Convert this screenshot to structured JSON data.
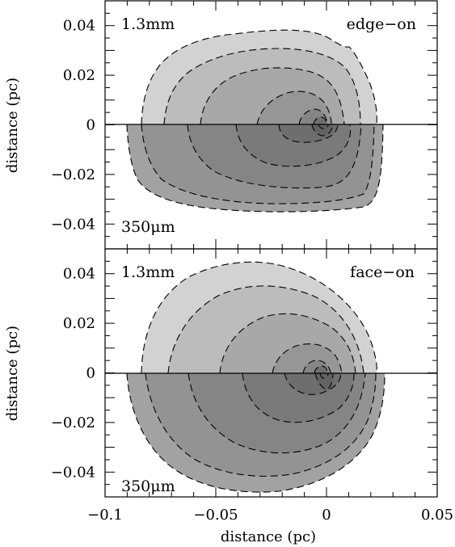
{
  "chart_data": [
    {
      "type": "contour",
      "panel": "top",
      "xlim": [
        -0.1,
        0.05
      ],
      "ylim": [
        -0.05,
        0.05
      ],
      "xlabel": "distance (pc)",
      "ylabel": "distance (pc)",
      "yticks": [
        "0.04",
        "0.02",
        "0",
        "−0.02",
        "−0.04"
      ],
      "xticks": [],
      "labels": {
        "upper_left": "1.3mm",
        "upper_right": "edge−on",
        "lower_left": "350μm"
      },
      "peak": [
        0.0,
        0.0
      ],
      "upper_half_levels": 6,
      "lower_half_levels": 7,
      "extent_x": [
        -0.093,
        0.027
      ],
      "extent_upper_y": 0.031,
      "extent_lower_y": -0.035
    },
    {
      "type": "contour",
      "panel": "bottom",
      "xlim": [
        -0.1,
        0.05
      ],
      "ylim": [
        -0.05,
        0.05
      ],
      "xlabel": "distance (pc)",
      "ylabel": "distance (pc)",
      "yticks": [
        "0.04",
        "0.02",
        "0",
        "−0.02",
        "−0.04"
      ],
      "xticks": [
        "−0.1",
        "−0.05",
        "0",
        "0.05"
      ],
      "labels": {
        "upper_left": "1.3mm",
        "upper_right": "face−on",
        "lower_left": "350μm"
      },
      "peak": [
        0.0,
        0.0
      ],
      "upper_half_levels": 6,
      "lower_half_levels": 7,
      "extent_x": [
        -0.093,
        0.027
      ],
      "extent_upper_y": 0.046,
      "extent_lower_y": -0.048
    }
  ]
}
